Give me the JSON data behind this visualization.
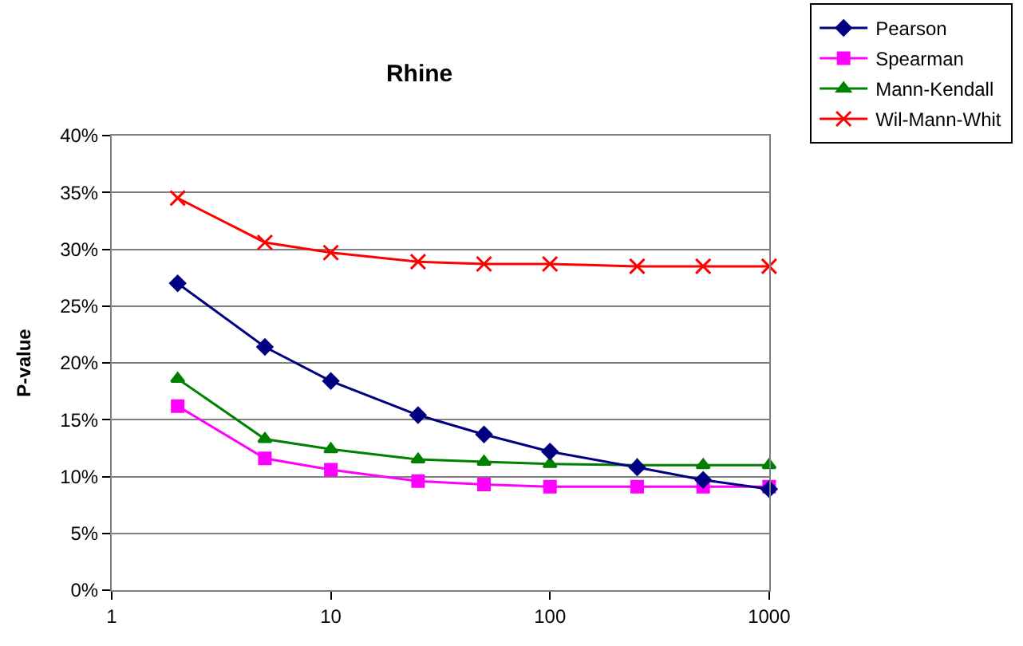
{
  "chart_data": {
    "type": "line",
    "title": "Rhine",
    "ylabel": "P-value",
    "log": "x",
    "grid": "y",
    "legend": "top right",
    "line_style": "solid",
    "x": [
      2,
      5,
      10,
      25,
      50,
      100,
      250,
      500,
      1000
    ],
    "xlim": [
      1,
      1000
    ],
    "xticks": [
      1,
      10,
      100,
      1000
    ],
    "ylim": [
      0,
      0.4
    ],
    "yticks": [
      {
        "value": 0,
        "label": "0%"
      },
      {
        "value": 0.05,
        "label": "5%"
      },
      {
        "value": 0.1,
        "label": "10%"
      },
      {
        "value": 0.15,
        "label": "15%"
      },
      {
        "value": 0.2,
        "label": "20%"
      },
      {
        "value": 0.25,
        "label": "25%"
      },
      {
        "value": 0.3,
        "label": "30%"
      },
      {
        "value": 0.35,
        "label": "35%"
      },
      {
        "value": 0.4,
        "label": "40%"
      }
    ],
    "series": [
      {
        "name": "Pearson",
        "color": "#000080",
        "marker": "diamond",
        "values": [
          0.27,
          0.214,
          0.184,
          0.154,
          0.137,
          0.122,
          0.108,
          0.097,
          0.089
        ]
      },
      {
        "name": "Spearman",
        "color": "#ff00ff",
        "marker": "square",
        "values": [
          0.162,
          0.116,
          0.106,
          0.096,
          0.093,
          0.091,
          0.091,
          0.091,
          0.091
        ]
      },
      {
        "name": "Mann-Kendall",
        "color": "#008000",
        "marker": "triangle",
        "values": [
          0.186,
          0.133,
          0.124,
          0.115,
          0.113,
          0.111,
          0.11,
          0.11,
          0.11
        ]
      },
      {
        "name": "Wil-Mann-Whit",
        "color": "#ff0000",
        "marker": "cross",
        "values": [
          0.345,
          0.306,
          0.297,
          0.289,
          0.287,
          0.287,
          0.285,
          0.285,
          0.285
        ]
      }
    ]
  }
}
